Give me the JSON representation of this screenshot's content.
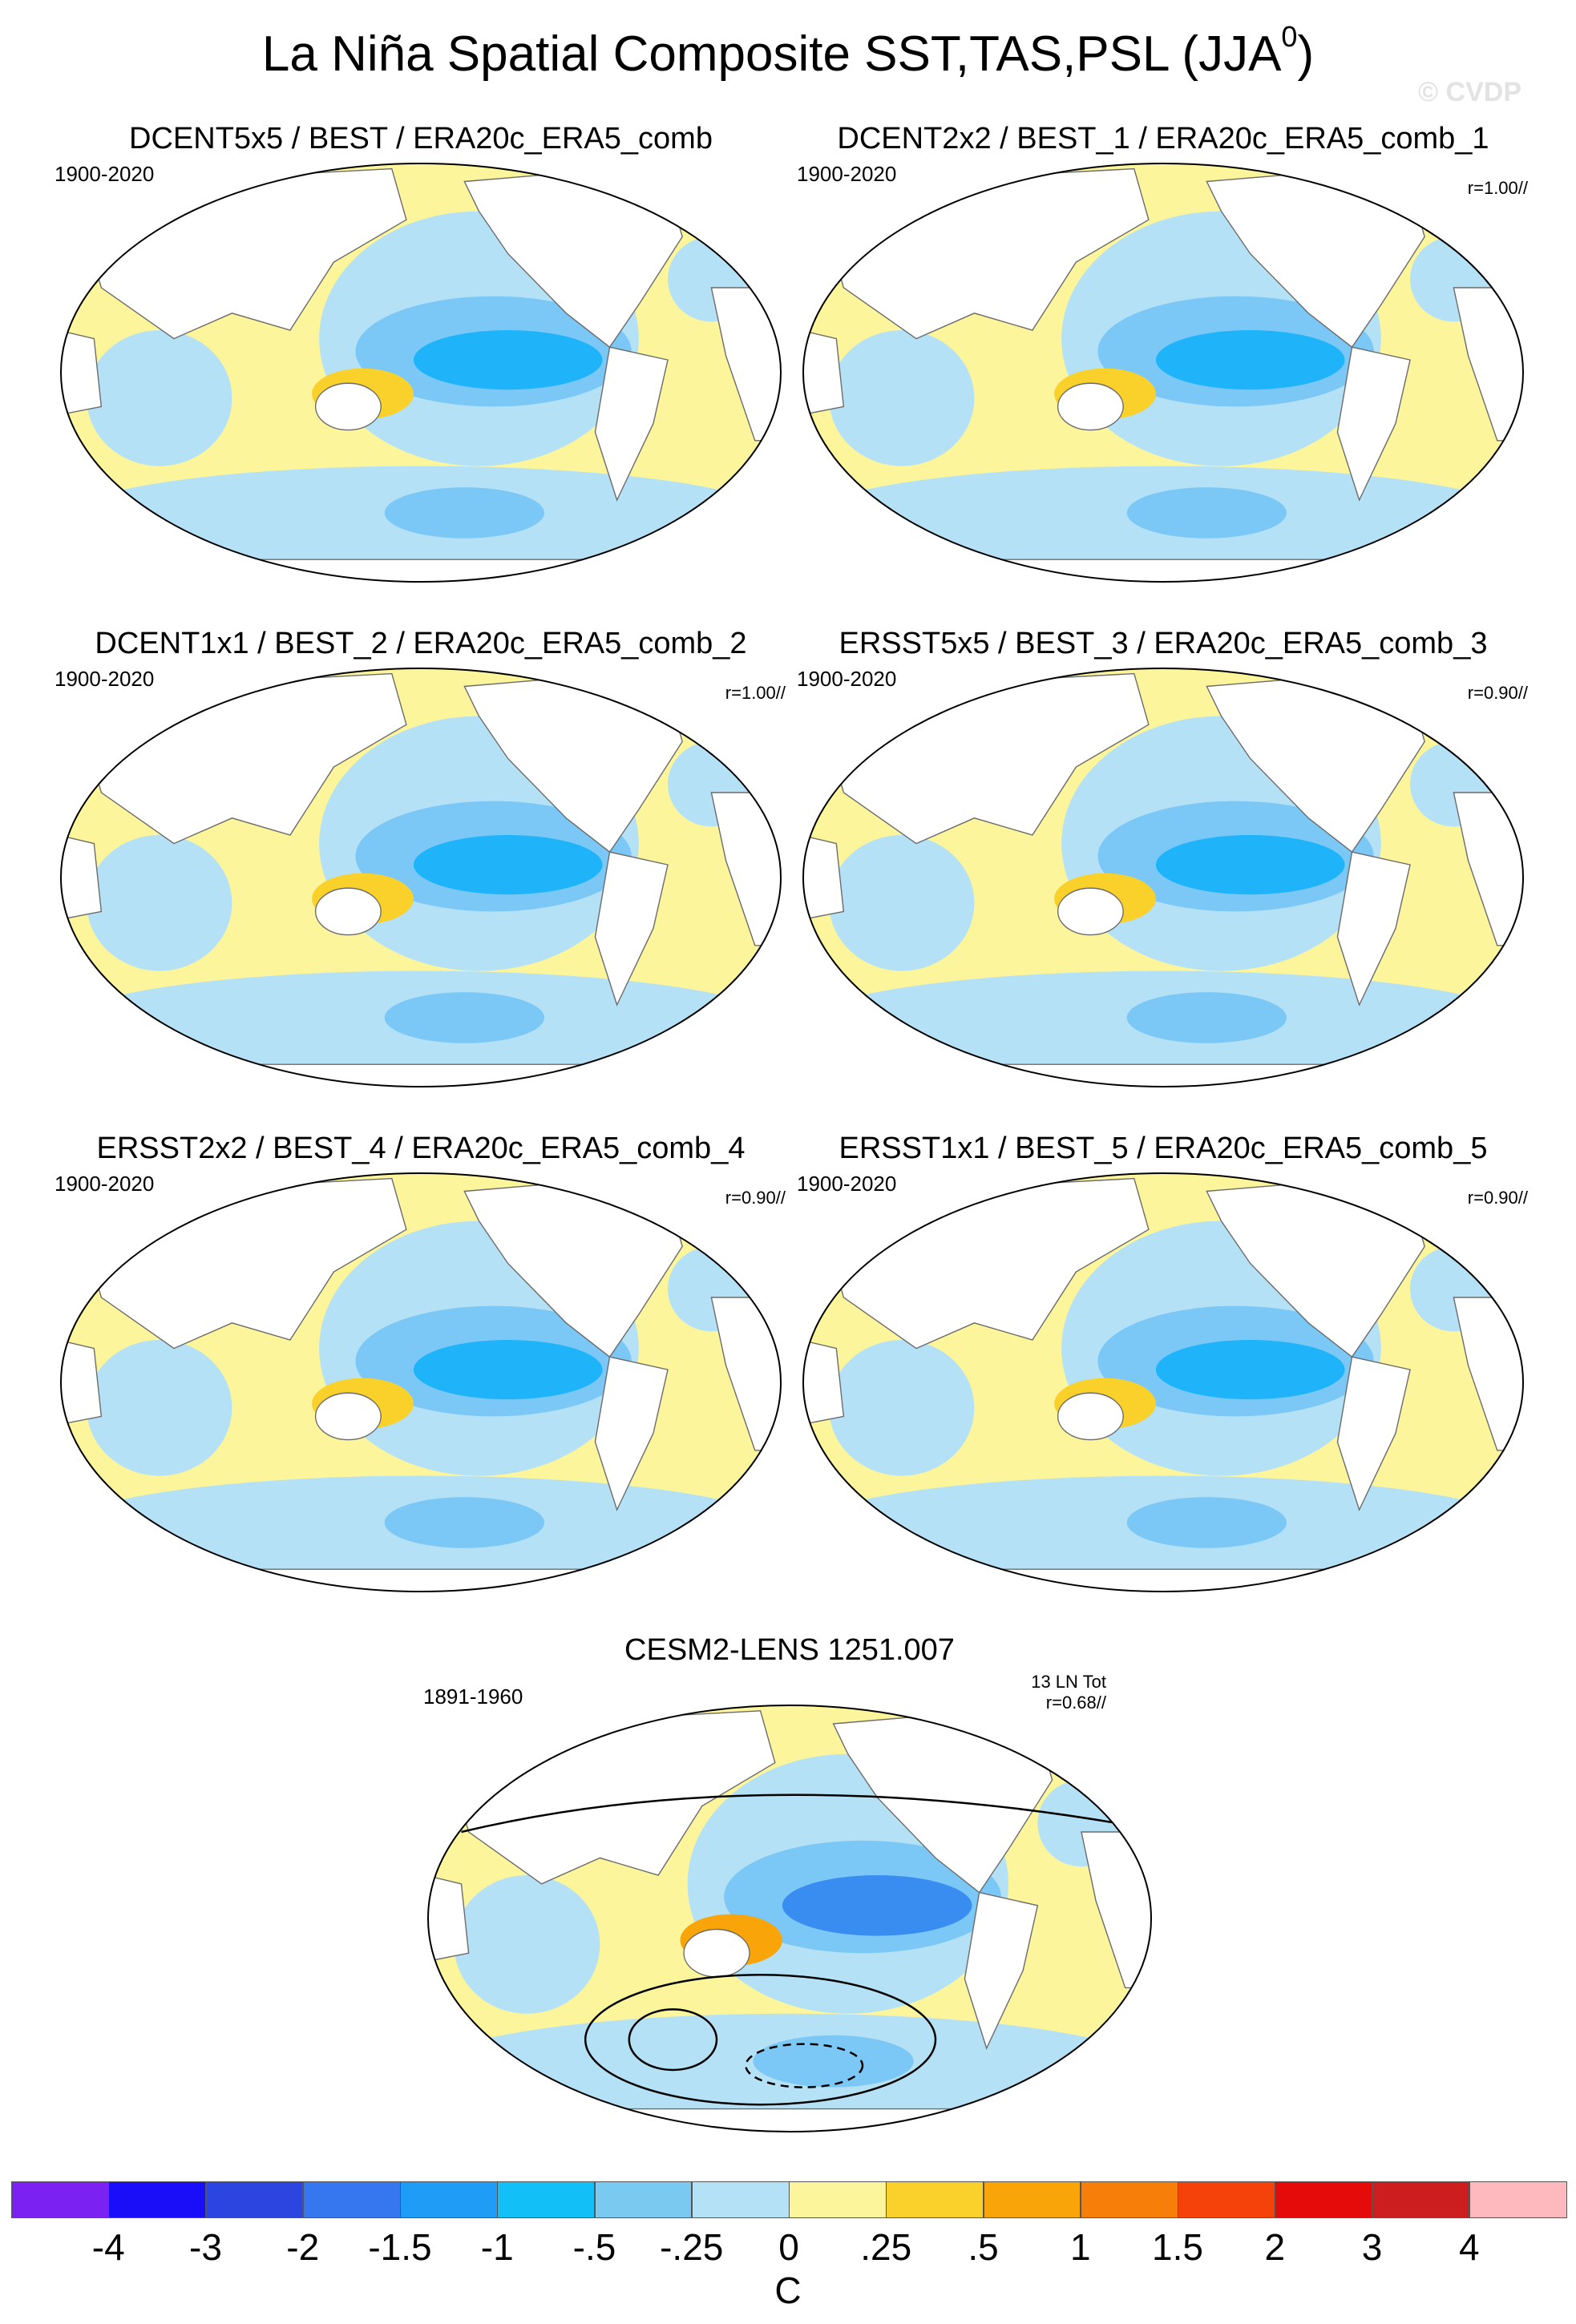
{
  "figure": {
    "title": "La Niña Spatial Composite SST,TAS,PSL (JJA",
    "title_superscript": "0",
    "title_close": ")",
    "watermark": "© CVDP"
  },
  "panels": [
    {
      "title": "DCENT5x5 / BEST / ERA20c_ERA5_comb",
      "period": "1900-2020",
      "r": "",
      "count": "",
      "colors": [
        "#fcf59c",
        "#b5e1f6",
        "#7bc8f6",
        "#1fb4f9",
        "#f9d12a"
      ]
    },
    {
      "title": "DCENT2x2 / BEST_1 / ERA20c_ERA5_comb_1",
      "period": "1900-2020",
      "r": "r=1.00//",
      "count": "",
      "colors": [
        "#fcf59c",
        "#b5e1f6",
        "#7bc8f6",
        "#1fb4f9",
        "#f9d12a"
      ]
    },
    {
      "title": "DCENT1x1 / BEST_2 / ERA20c_ERA5_comb_2",
      "period": "1900-2020",
      "r": "r=1.00//",
      "count": "",
      "colors": [
        "#fcf59c",
        "#b5e1f6",
        "#7bc8f6",
        "#1fb4f9",
        "#f9d12a"
      ]
    },
    {
      "title": "ERSST5x5 / BEST_3 / ERA20c_ERA5_comb_3",
      "period": "1900-2020",
      "r": "r=0.90//",
      "count": "",
      "colors": [
        "#fcf59c",
        "#b5e1f6",
        "#7bc8f6",
        "#1fb4f9",
        "#f9d12a"
      ]
    },
    {
      "title": "ERSST2x2 / BEST_4 / ERA20c_ERA5_comb_4",
      "period": "1900-2020",
      "r": "r=0.90//",
      "count": "",
      "colors": [
        "#fcf59c",
        "#b5e1f6",
        "#7bc8f6",
        "#1fb4f9",
        "#f9d12a"
      ]
    },
    {
      "title": "ERSST1x1 / BEST_5 / ERA20c_ERA5_comb_5",
      "period": "1900-2020",
      "r": "r=0.90//",
      "count": "",
      "colors": [
        "#fcf59c",
        "#b5e1f6",
        "#7bc8f6",
        "#1fb4f9",
        "#f9d12a"
      ]
    },
    {
      "title": "CESM2-LENS 1251.007",
      "period": "1891-1960",
      "r": "r=0.68//",
      "count": "13 LN Tot",
      "colors": [
        "#fcf59c",
        "#b5e1f6",
        "#7bc8f6",
        "#3a8df0",
        "#f9a50a"
      ]
    }
  ],
  "colorbar": {
    "unit": "C",
    "ticks": [
      "-4",
      "-3",
      "-2",
      "-1.5",
      "-1",
      "-.5",
      "-.25",
      "0",
      ".25",
      ".5",
      "1",
      "1.5",
      "2",
      "3",
      "4"
    ],
    "colors": [
      "#7b22f2",
      "#1a0df7",
      "#2c44e0",
      "#3677ef",
      "#1e9cf6",
      "#12bff7",
      "#79c9f1",
      "#b5e1f6",
      "#fcf59c",
      "#f9d12a",
      "#f9a50a",
      "#f67e09",
      "#f5420b",
      "#e60b0b",
      "#cd1e1f",
      "#fdb9bd"
    ]
  }
}
